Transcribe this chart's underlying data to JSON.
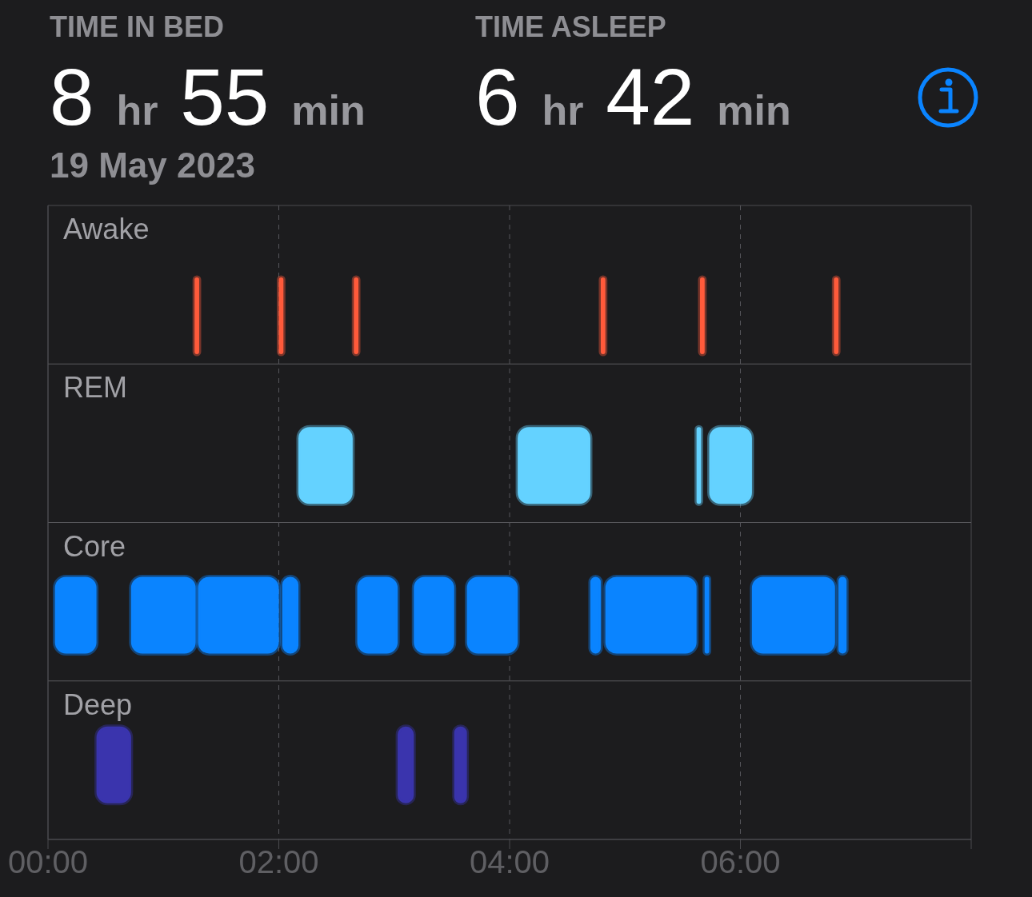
{
  "chart_data": {
    "type": "bar",
    "orientation": "horizontal",
    "annotations": [
      "TIME IN BED",
      "8 hr 55 min",
      "19 May 2023",
      "TIME ASLEEP",
      "6 hr 42 min"
    ],
    "categories": [
      "Awake",
      "REM",
      "Core",
      "Deep"
    ],
    "xlim": [
      0,
      8
    ],
    "xticks": [
      {
        "value": 0,
        "label": "00:00"
      },
      {
        "value": 2,
        "label": "02:00"
      },
      {
        "value": 4,
        "label": "04:00"
      },
      {
        "value": 6,
        "label": "06:00"
      },
      {
        "value": 8,
        "label": null
      }
    ],
    "grid": true,
    "series": [
      {
        "colors": [
          "#ff5b3b",
          "#64d2ff",
          "#0a84ff",
          "#3a34ad"
        ],
        "values": [
          0.04,
          0.47,
          0.36,
          0.3
        ],
        "base": [
          1.27,
          2.17,
          0.06,
          0.42
        ]
      },
      {
        "colors": [
          "#ff5b3b",
          "#64d2ff",
          "#0a84ff",
          "#3a34ad"
        ],
        "values": [
          0.04,
          0.63,
          0.56,
          0.14
        ],
        "base": [
          2.0,
          4.07,
          0.72,
          3.03
        ]
      },
      {
        "colors": [
          "#ff5b3b",
          "#64d2ff",
          "#0a84ff",
          "#3a34ad"
        ],
        "values": [
          0.04,
          0.04,
          0.7,
          0.11
        ],
        "base": [
          2.65,
          5.62,
          1.3,
          3.52
        ]
      },
      {
        "colors": [
          "#ff5b3b",
          "#64d2ff",
          "#0a84ff",
          null
        ],
        "values": [
          0.04,
          0.37,
          0.14,
          null
        ],
        "base": [
          4.79,
          5.73,
          2.03,
          null
        ]
      },
      {
        "colors": [
          "#ff5b3b",
          null,
          "#0a84ff",
          null
        ],
        "values": [
          0.04,
          null,
          0.35,
          null
        ],
        "base": [
          5.65,
          null,
          2.68,
          null
        ]
      },
      {
        "colors": [
          "#ff5b3b",
          null,
          "#0a84ff",
          null
        ],
        "values": [
          0.04,
          null,
          0.35,
          null
        ],
        "base": [
          6.81,
          null,
          3.17,
          null
        ]
      },
      {
        "colors": [
          null,
          null,
          "#0a84ff",
          null
        ],
        "values": [
          null,
          null,
          0.44,
          null
        ],
        "base": [
          null,
          null,
          3.63,
          null
        ]
      },
      {
        "colors": [
          null,
          null,
          "#0a84ff",
          null
        ],
        "values": [
          null,
          null,
          0.09,
          null
        ],
        "base": [
          null,
          null,
          4.7,
          null
        ]
      },
      {
        "colors": [
          null,
          null,
          "#0a84ff",
          null
        ],
        "values": [
          null,
          null,
          0.79,
          null
        ],
        "base": [
          null,
          null,
          4.83,
          null
        ]
      },
      {
        "colors": [
          null,
          null,
          "#0a84ff",
          null
        ],
        "values": [
          null,
          null,
          0.04,
          null
        ],
        "base": [
          null,
          null,
          5.69,
          null
        ]
      },
      {
        "colors": [
          null,
          null,
          "#0a84ff",
          null
        ],
        "values": [
          null,
          null,
          0.72,
          null
        ],
        "base": [
          null,
          null,
          6.1,
          null
        ]
      },
      {
        "colors": [
          null,
          null,
          "#0a84ff",
          null
        ],
        "values": [
          null,
          null,
          0.07,
          null
        ],
        "base": [
          null,
          null,
          6.85,
          null
        ]
      }
    ]
  }
}
